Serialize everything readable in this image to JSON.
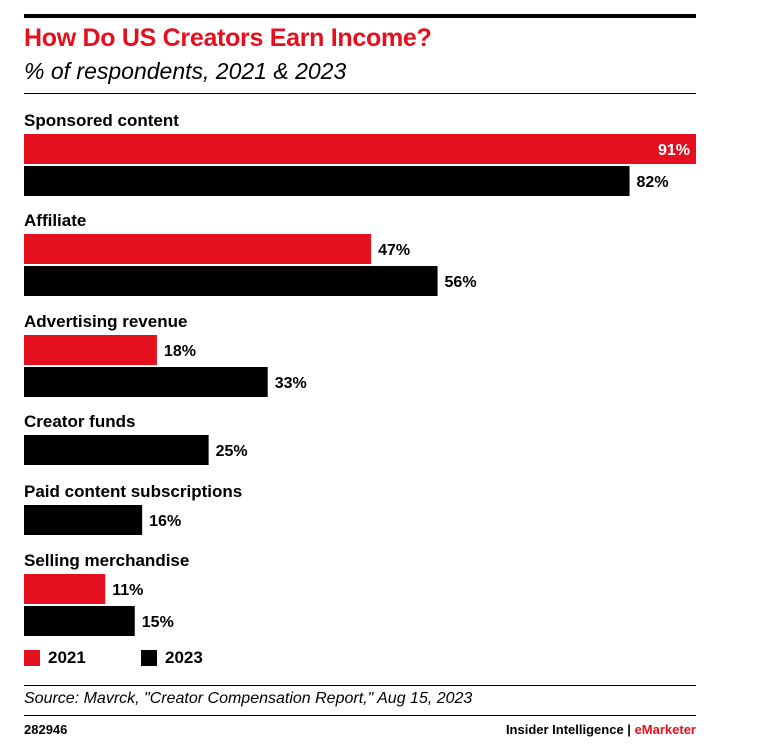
{
  "chart_data": {
    "type": "bar",
    "orientation": "horizontal",
    "title": "How Do US Creators Earn Income?",
    "subtitle": "% of respondents, 2021 & 2023",
    "categories": [
      "Sponsored content",
      "Affiliate",
      "Advertising revenue",
      "Creator funds",
      "Paid content subscriptions",
      "Selling merchandise"
    ],
    "series": [
      {
        "name": "2021",
        "color": "#e60f1e",
        "values": [
          91,
          47,
          18,
          null,
          null,
          11
        ]
      },
      {
        "name": "2023",
        "color": "#000000",
        "values": [
          82,
          56,
          33,
          25,
          16,
          15
        ]
      }
    ],
    "value_suffix": "%",
    "xlim": [
      0,
      91
    ],
    "grid": false,
    "legend": "bottom-left"
  },
  "source": "Source: Mavrck, \"Creator Compensation Report,\" Aug 15, 2023",
  "footer": {
    "chart_id": "282946",
    "brand_prefix": "Insider Intelligence | ",
    "brand_name": "eMarketer"
  }
}
